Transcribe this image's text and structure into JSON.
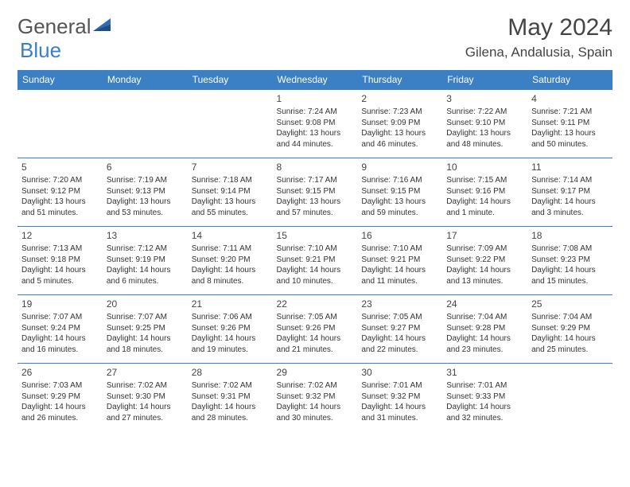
{
  "brand": {
    "part1": "General",
    "part2": "Blue"
  },
  "title": "May 2024",
  "location": "Gilena, Andalusia, Spain",
  "colors": {
    "accent": "#3b7fc4",
    "text": "#333",
    "headerText": "#ffffff",
    "bg": "#ffffff"
  },
  "dayHeaders": [
    "Sunday",
    "Monday",
    "Tuesday",
    "Wednesday",
    "Thursday",
    "Friday",
    "Saturday"
  ],
  "weeks": [
    [
      null,
      null,
      null,
      {
        "n": "1",
        "sr": "Sunrise: 7:24 AM",
        "ss": "Sunset: 9:08 PM",
        "dl1": "Daylight: 13 hours",
        "dl2": "and 44 minutes."
      },
      {
        "n": "2",
        "sr": "Sunrise: 7:23 AM",
        "ss": "Sunset: 9:09 PM",
        "dl1": "Daylight: 13 hours",
        "dl2": "and 46 minutes."
      },
      {
        "n": "3",
        "sr": "Sunrise: 7:22 AM",
        "ss": "Sunset: 9:10 PM",
        "dl1": "Daylight: 13 hours",
        "dl2": "and 48 minutes."
      },
      {
        "n": "4",
        "sr": "Sunrise: 7:21 AM",
        "ss": "Sunset: 9:11 PM",
        "dl1": "Daylight: 13 hours",
        "dl2": "and 50 minutes."
      }
    ],
    [
      {
        "n": "5",
        "sr": "Sunrise: 7:20 AM",
        "ss": "Sunset: 9:12 PM",
        "dl1": "Daylight: 13 hours",
        "dl2": "and 51 minutes."
      },
      {
        "n": "6",
        "sr": "Sunrise: 7:19 AM",
        "ss": "Sunset: 9:13 PM",
        "dl1": "Daylight: 13 hours",
        "dl2": "and 53 minutes."
      },
      {
        "n": "7",
        "sr": "Sunrise: 7:18 AM",
        "ss": "Sunset: 9:14 PM",
        "dl1": "Daylight: 13 hours",
        "dl2": "and 55 minutes."
      },
      {
        "n": "8",
        "sr": "Sunrise: 7:17 AM",
        "ss": "Sunset: 9:15 PM",
        "dl1": "Daylight: 13 hours",
        "dl2": "and 57 minutes."
      },
      {
        "n": "9",
        "sr": "Sunrise: 7:16 AM",
        "ss": "Sunset: 9:15 PM",
        "dl1": "Daylight: 13 hours",
        "dl2": "and 59 minutes."
      },
      {
        "n": "10",
        "sr": "Sunrise: 7:15 AM",
        "ss": "Sunset: 9:16 PM",
        "dl1": "Daylight: 14 hours",
        "dl2": "and 1 minute."
      },
      {
        "n": "11",
        "sr": "Sunrise: 7:14 AM",
        "ss": "Sunset: 9:17 PM",
        "dl1": "Daylight: 14 hours",
        "dl2": "and 3 minutes."
      }
    ],
    [
      {
        "n": "12",
        "sr": "Sunrise: 7:13 AM",
        "ss": "Sunset: 9:18 PM",
        "dl1": "Daylight: 14 hours",
        "dl2": "and 5 minutes."
      },
      {
        "n": "13",
        "sr": "Sunrise: 7:12 AM",
        "ss": "Sunset: 9:19 PM",
        "dl1": "Daylight: 14 hours",
        "dl2": "and 6 minutes."
      },
      {
        "n": "14",
        "sr": "Sunrise: 7:11 AM",
        "ss": "Sunset: 9:20 PM",
        "dl1": "Daylight: 14 hours",
        "dl2": "and 8 minutes."
      },
      {
        "n": "15",
        "sr": "Sunrise: 7:10 AM",
        "ss": "Sunset: 9:21 PM",
        "dl1": "Daylight: 14 hours",
        "dl2": "and 10 minutes."
      },
      {
        "n": "16",
        "sr": "Sunrise: 7:10 AM",
        "ss": "Sunset: 9:21 PM",
        "dl1": "Daylight: 14 hours",
        "dl2": "and 11 minutes."
      },
      {
        "n": "17",
        "sr": "Sunrise: 7:09 AM",
        "ss": "Sunset: 9:22 PM",
        "dl1": "Daylight: 14 hours",
        "dl2": "and 13 minutes."
      },
      {
        "n": "18",
        "sr": "Sunrise: 7:08 AM",
        "ss": "Sunset: 9:23 PM",
        "dl1": "Daylight: 14 hours",
        "dl2": "and 15 minutes."
      }
    ],
    [
      {
        "n": "19",
        "sr": "Sunrise: 7:07 AM",
        "ss": "Sunset: 9:24 PM",
        "dl1": "Daylight: 14 hours",
        "dl2": "and 16 minutes."
      },
      {
        "n": "20",
        "sr": "Sunrise: 7:07 AM",
        "ss": "Sunset: 9:25 PM",
        "dl1": "Daylight: 14 hours",
        "dl2": "and 18 minutes."
      },
      {
        "n": "21",
        "sr": "Sunrise: 7:06 AM",
        "ss": "Sunset: 9:26 PM",
        "dl1": "Daylight: 14 hours",
        "dl2": "and 19 minutes."
      },
      {
        "n": "22",
        "sr": "Sunrise: 7:05 AM",
        "ss": "Sunset: 9:26 PM",
        "dl1": "Daylight: 14 hours",
        "dl2": "and 21 minutes."
      },
      {
        "n": "23",
        "sr": "Sunrise: 7:05 AM",
        "ss": "Sunset: 9:27 PM",
        "dl1": "Daylight: 14 hours",
        "dl2": "and 22 minutes."
      },
      {
        "n": "24",
        "sr": "Sunrise: 7:04 AM",
        "ss": "Sunset: 9:28 PM",
        "dl1": "Daylight: 14 hours",
        "dl2": "and 23 minutes."
      },
      {
        "n": "25",
        "sr": "Sunrise: 7:04 AM",
        "ss": "Sunset: 9:29 PM",
        "dl1": "Daylight: 14 hours",
        "dl2": "and 25 minutes."
      }
    ],
    [
      {
        "n": "26",
        "sr": "Sunrise: 7:03 AM",
        "ss": "Sunset: 9:29 PM",
        "dl1": "Daylight: 14 hours",
        "dl2": "and 26 minutes."
      },
      {
        "n": "27",
        "sr": "Sunrise: 7:02 AM",
        "ss": "Sunset: 9:30 PM",
        "dl1": "Daylight: 14 hours",
        "dl2": "and 27 minutes."
      },
      {
        "n": "28",
        "sr": "Sunrise: 7:02 AM",
        "ss": "Sunset: 9:31 PM",
        "dl1": "Daylight: 14 hours",
        "dl2": "and 28 minutes."
      },
      {
        "n": "29",
        "sr": "Sunrise: 7:02 AM",
        "ss": "Sunset: 9:32 PM",
        "dl1": "Daylight: 14 hours",
        "dl2": "and 30 minutes."
      },
      {
        "n": "30",
        "sr": "Sunrise: 7:01 AM",
        "ss": "Sunset: 9:32 PM",
        "dl1": "Daylight: 14 hours",
        "dl2": "and 31 minutes."
      },
      {
        "n": "31",
        "sr": "Sunrise: 7:01 AM",
        "ss": "Sunset: 9:33 PM",
        "dl1": "Daylight: 14 hours",
        "dl2": "and 32 minutes."
      },
      null
    ]
  ]
}
